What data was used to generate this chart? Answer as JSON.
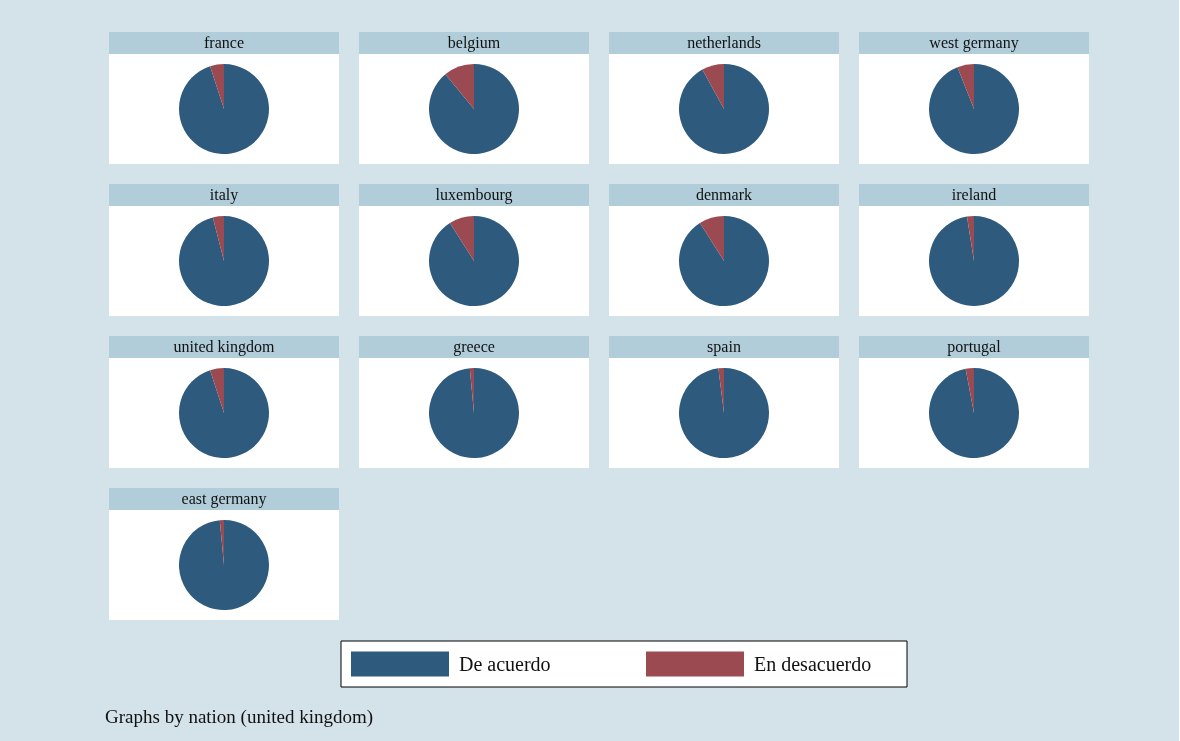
{
  "chart_data": [
    {
      "type": "pie",
      "title": "france",
      "categories": [
        "De acuerdo",
        "En desacuerdo"
      ],
      "values": [
        95,
        5
      ],
      "colors": [
        "#2e5a7e",
        "#9b4a51"
      ],
      "legend": "bottom",
      "annotations": [
        "Graphs by nation (united kingdom)"
      ]
    },
    {
      "type": "pie",
      "title": "belgium",
      "categories": [
        null,
        null
      ],
      "values": [
        89,
        11
      ],
      "colors": [
        "#2e5a7e",
        "#9b4a51"
      ]
    },
    {
      "type": "pie",
      "title": "netherlands",
      "categories": [
        null,
        null
      ],
      "values": [
        92,
        8
      ],
      "colors": [
        "#2e5a7e",
        "#9b4a51"
      ]
    },
    {
      "type": "pie",
      "title": "west germany",
      "categories": [
        null,
        null
      ],
      "values": [
        94,
        6
      ],
      "colors": [
        "#2e5a7e",
        "#9b4a51"
      ]
    },
    {
      "type": "pie",
      "title": "italy",
      "categories": [
        null,
        null
      ],
      "values": [
        96,
        4
      ],
      "colors": [
        "#2e5a7e",
        "#9b4a51"
      ]
    },
    {
      "type": "pie",
      "title": "luxembourg",
      "categories": [
        null,
        null
      ],
      "values": [
        91,
        9
      ],
      "colors": [
        "#2e5a7e",
        "#9b4a51"
      ]
    },
    {
      "type": "pie",
      "title": "denmark",
      "categories": [
        null,
        null
      ],
      "values": [
        91,
        9
      ],
      "colors": [
        "#2e5a7e",
        "#9b4a51"
      ]
    },
    {
      "type": "pie",
      "title": "ireland",
      "categories": [
        null,
        null
      ],
      "values": [
        97.5,
        2.5
      ],
      "colors": [
        "#2e5a7e",
        "#9b4a51"
      ]
    },
    {
      "type": "pie",
      "title": "united kingdom",
      "categories": [
        null,
        null
      ],
      "values": [
        95,
        5
      ],
      "colors": [
        "#2e5a7e",
        "#9b4a51"
      ]
    },
    {
      "type": "pie",
      "title": "greece",
      "categories": [
        null,
        null
      ],
      "values": [
        98.5,
        1.5
      ],
      "colors": [
        "#2e5a7e",
        "#9b4a51"
      ]
    },
    {
      "type": "pie",
      "title": "spain",
      "categories": [
        null,
        null
      ],
      "values": [
        98,
        2
      ],
      "colors": [
        "#2e5a7e",
        "#9b4a51"
      ]
    },
    {
      "type": "pie",
      "title": "portugal",
      "categories": [
        null,
        null
      ],
      "values": [
        97,
        3
      ],
      "colors": [
        "#2e5a7e",
        "#9b4a51"
      ]
    },
    {
      "type": "pie",
      "title": "east germany",
      "categories": [
        null,
        null
      ],
      "values": [
        98.5,
        1.5
      ],
      "colors": [
        "#2e5a7e",
        "#9b4a51"
      ]
    }
  ]
}
